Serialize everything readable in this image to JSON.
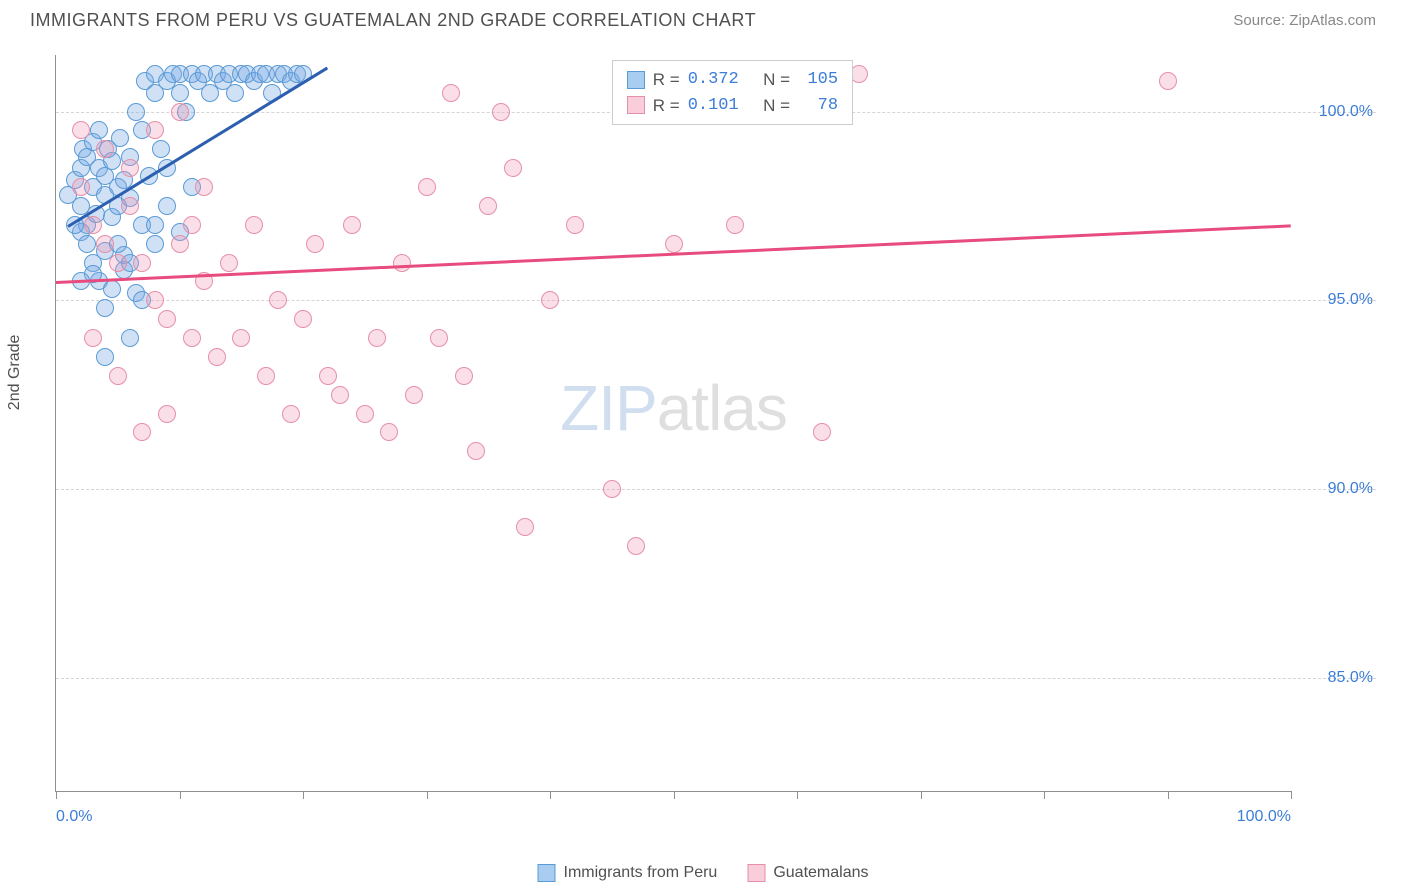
{
  "title": "IMMIGRANTS FROM PERU VS GUATEMALAN 2ND GRADE CORRELATION CHART",
  "source_label": "Source: ",
  "source_value": "ZipAtlas.com",
  "watermark": {
    "part1": "ZIP",
    "part2": "atlas"
  },
  "yaxis_label": "2nd Grade",
  "chart": {
    "type": "scatter",
    "xlim": [
      0,
      100
    ],
    "ylim": [
      82,
      101.5
    ],
    "x_ticks": [
      0,
      10,
      20,
      30,
      40,
      50,
      60,
      70,
      80,
      90,
      100
    ],
    "x_tick_labels": {
      "0": "0.0%",
      "100": "100.0%"
    },
    "y_gridlines": [
      85,
      90,
      95,
      100
    ],
    "y_tick_labels": {
      "85": "85.0%",
      "90": "90.0%",
      "95": "95.0%",
      "100": "100.0%"
    },
    "grid_color": "#d5d5d5",
    "axis_color": "#909090",
    "background_color": "#ffffff",
    "marker_radius": 9,
    "marker_stroke_width": 1.5,
    "series": [
      {
        "name": "Immigrants from Peru",
        "fill_color": "rgba(120,170,230,0.35)",
        "stroke_color": "#5b9bd5",
        "swatch_fill": "#a9cdf0",
        "swatch_stroke": "#5b9bd5",
        "R": "0.372",
        "N": "105",
        "trend": {
          "x1": 1,
          "y1": 97.0,
          "x2": 22,
          "y2": 101.2,
          "color": "#2d5fb0",
          "width": 3
        },
        "points": [
          [
            1,
            97.8
          ],
          [
            1.5,
            98.2
          ],
          [
            2,
            97.5
          ],
          [
            2,
            98.5
          ],
          [
            2.2,
            99.0
          ],
          [
            2.5,
            97.0
          ],
          [
            2.5,
            98.8
          ],
          [
            3,
            98.0
          ],
          [
            3,
            99.2
          ],
          [
            3.2,
            97.3
          ],
          [
            3.5,
            98.5
          ],
          [
            3.5,
            99.5
          ],
          [
            4,
            97.8
          ],
          [
            4,
            98.3
          ],
          [
            4.2,
            99.0
          ],
          [
            4.5,
            97.2
          ],
          [
            4.5,
            98.7
          ],
          [
            5,
            98.0
          ],
          [
            5,
            97.5
          ],
          [
            5.2,
            99.3
          ],
          [
            5.5,
            96.2
          ],
          [
            5.5,
            98.2
          ],
          [
            6,
            97.7
          ],
          [
            6,
            98.8
          ],
          [
            6.5,
            100.0
          ],
          [
            7,
            97.0
          ],
          [
            7,
            99.5
          ],
          [
            7.2,
            100.8
          ],
          [
            7.5,
            98.3
          ],
          [
            8,
            97.0
          ],
          [
            8,
            100.5
          ],
          [
            8,
            101.0
          ],
          [
            8.5,
            99.0
          ],
          [
            9,
            98.5
          ],
          [
            9,
            100.8
          ],
          [
            9.5,
            101.0
          ],
          [
            10,
            100.5
          ],
          [
            10,
            101.0
          ],
          [
            10.5,
            100.0
          ],
          [
            11,
            101.0
          ],
          [
            11,
            98.0
          ],
          [
            11.5,
            100.8
          ],
          [
            12,
            101.0
          ],
          [
            12.5,
            100.5
          ],
          [
            13,
            101.0
          ],
          [
            13.5,
            100.8
          ],
          [
            14,
            101.0
          ],
          [
            14.5,
            100.5
          ],
          [
            15,
            101.0
          ],
          [
            15.5,
            101.0
          ],
          [
            16,
            100.8
          ],
          [
            16.5,
            101.0
          ],
          [
            17,
            101.0
          ],
          [
            17.5,
            100.5
          ],
          [
            18,
            101.0
          ],
          [
            18.5,
            101.0
          ],
          [
            19,
            100.8
          ],
          [
            19.5,
            101.0
          ],
          [
            20,
            101.0
          ],
          [
            3,
            96.0
          ],
          [
            3.5,
            95.5
          ],
          [
            4,
            96.3
          ],
          [
            2,
            96.8
          ],
          [
            2.5,
            96.5
          ],
          [
            1.5,
            97.0
          ],
          [
            5,
            96.5
          ],
          [
            5.5,
            95.8
          ],
          [
            6,
            96.0
          ],
          [
            6.5,
            95.2
          ],
          [
            7,
            95.0
          ],
          [
            4,
            94.8
          ],
          [
            4.5,
            95.3
          ],
          [
            8,
            96.5
          ],
          [
            3,
            95.7
          ],
          [
            2,
            95.5
          ],
          [
            9,
            97.5
          ],
          [
            10,
            96.8
          ],
          [
            4,
            93.5
          ],
          [
            6,
            94.0
          ]
        ]
      },
      {
        "name": "Guatemalans",
        "fill_color": "rgba(240,150,180,0.3)",
        "stroke_color": "#e68fa8",
        "swatch_fill": "#f9cdd9",
        "swatch_stroke": "#e68fa8",
        "R": "0.101",
        "N": "78",
        "trend": {
          "x1": 0,
          "y1": 95.5,
          "x2": 100,
          "y2": 97.0,
          "color": "#e84b7e",
          "width": 2.5
        },
        "points": [
          [
            2,
            98.0
          ],
          [
            3,
            97.0
          ],
          [
            4,
            96.5
          ],
          [
            5,
            96.0
          ],
          [
            6,
            97.5
          ],
          [
            7,
            96.0
          ],
          [
            8,
            95.0
          ],
          [
            9,
            94.5
          ],
          [
            10,
            96.5
          ],
          [
            11,
            94.0
          ],
          [
            12,
            95.5
          ],
          [
            13,
            93.5
          ],
          [
            14,
            96.0
          ],
          [
            15,
            94.0
          ],
          [
            16,
            97.0
          ],
          [
            17,
            93.0
          ],
          [
            18,
            95.0
          ],
          [
            19,
            92.0
          ],
          [
            20,
            94.5
          ],
          [
            21,
            96.5
          ],
          [
            22,
            93.0
          ],
          [
            23,
            92.5
          ],
          [
            24,
            97.0
          ],
          [
            25,
            92.0
          ],
          [
            26,
            94.0
          ],
          [
            27,
            91.5
          ],
          [
            28,
            96.0
          ],
          [
            29,
            92.5
          ],
          [
            30,
            98.0
          ],
          [
            31,
            94.0
          ],
          [
            32,
            100.5
          ],
          [
            33,
            93.0
          ],
          [
            34,
            91.0
          ],
          [
            35,
            97.5
          ],
          [
            36,
            100.0
          ],
          [
            37,
            98.5
          ],
          [
            38,
            89.0
          ],
          [
            40,
            95.0
          ],
          [
            42,
            97.0
          ],
          [
            45,
            90.0
          ],
          [
            47,
            88.5
          ],
          [
            50,
            96.5
          ],
          [
            55,
            97.0
          ],
          [
            58,
            100.0
          ],
          [
            60,
            101.0
          ],
          [
            3,
            94.0
          ],
          [
            5,
            93.0
          ],
          [
            7,
            91.5
          ],
          [
            9,
            92.0
          ],
          [
            11,
            97.0
          ],
          [
            4,
            99.0
          ],
          [
            6,
            98.5
          ],
          [
            8,
            99.5
          ],
          [
            10,
            100.0
          ],
          [
            12,
            98.0
          ],
          [
            62,
            91.5
          ],
          [
            2,
            99.5
          ],
          [
            65,
            101.0
          ],
          [
            90,
            100.8
          ]
        ]
      }
    ]
  },
  "legend_box": {
    "R_label": "R = ",
    "N_label": "N = "
  },
  "bottom_legend": {
    "items": [
      {
        "label": "Immigrants from Peru",
        "fill": "#a9cdf0",
        "stroke": "#5b9bd5"
      },
      {
        "label": "Guatemalans",
        "fill": "#f9cdd9",
        "stroke": "#e68fa8"
      }
    ]
  }
}
